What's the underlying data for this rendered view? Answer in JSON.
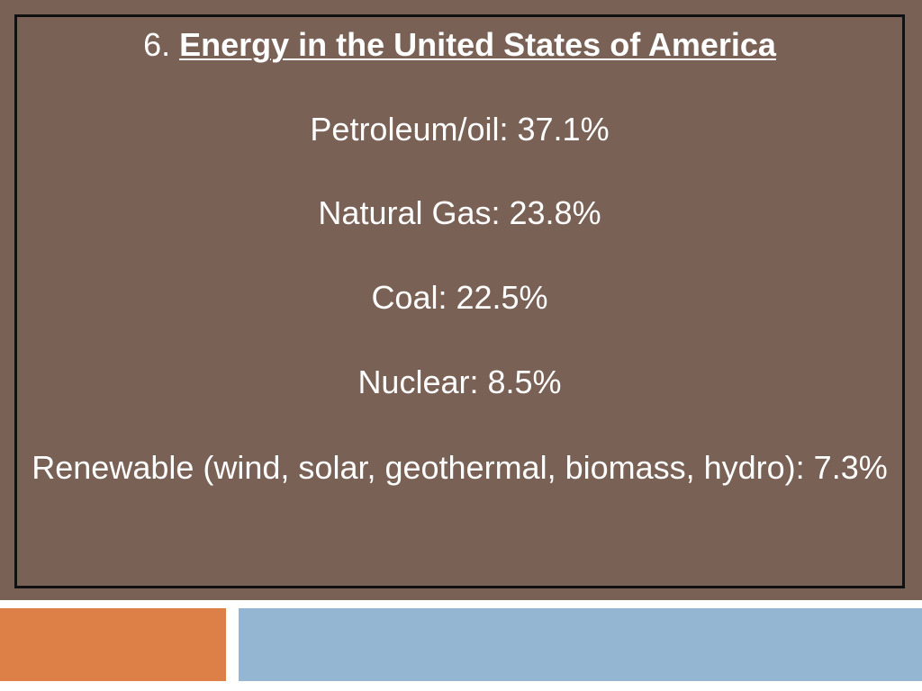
{
  "slide": {
    "number": "6.",
    "title": "Energy in the United States of America",
    "items": [
      {
        "text": "Petroleum/oil: 37.1%"
      },
      {
        "text": "Natural Gas: 23.8%"
      },
      {
        "text": "Coal: 22.5%"
      },
      {
        "text": "Nuclear: 8.5%"
      },
      {
        "text": "Renewable (wind, solar, geothermal, biomass, hydro): 7.3%"
      }
    ]
  },
  "colors": {
    "panel_background": "#7a6155",
    "text": "#ffffff",
    "accent_orange": "#dd8047",
    "accent_blue": "#94b6d2"
  }
}
